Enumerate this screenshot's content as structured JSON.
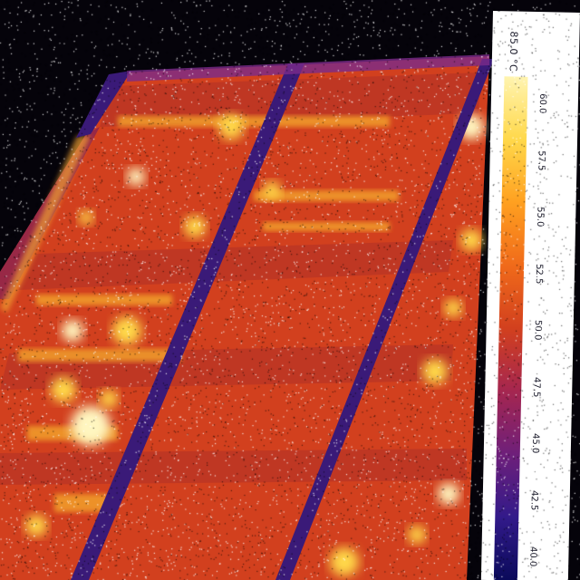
{
  "image": {
    "subject": "thermal-image-solar-panels",
    "colors": {
      "background": "#05030a",
      "panel_base": "#d2401e",
      "panel_dark": "#8a2250",
      "hot": "#ffd84a",
      "hottest": "#fff6c0",
      "gap": "#3a1a78"
    }
  },
  "legend": {
    "unit": "85.0 °C",
    "ticks": [
      "60.0",
      "57.5",
      "55.0",
      "52.5",
      "50.0",
      "47.5",
      "45.0",
      "42.5",
      "40.0"
    ],
    "gradient": [
      "#fff4b0",
      "#ffd84a",
      "#ffa020",
      "#f06a1a",
      "#d2401e",
      "#a52650",
      "#6e1f7a",
      "#321a8a",
      "#0a0a5a"
    ]
  }
}
